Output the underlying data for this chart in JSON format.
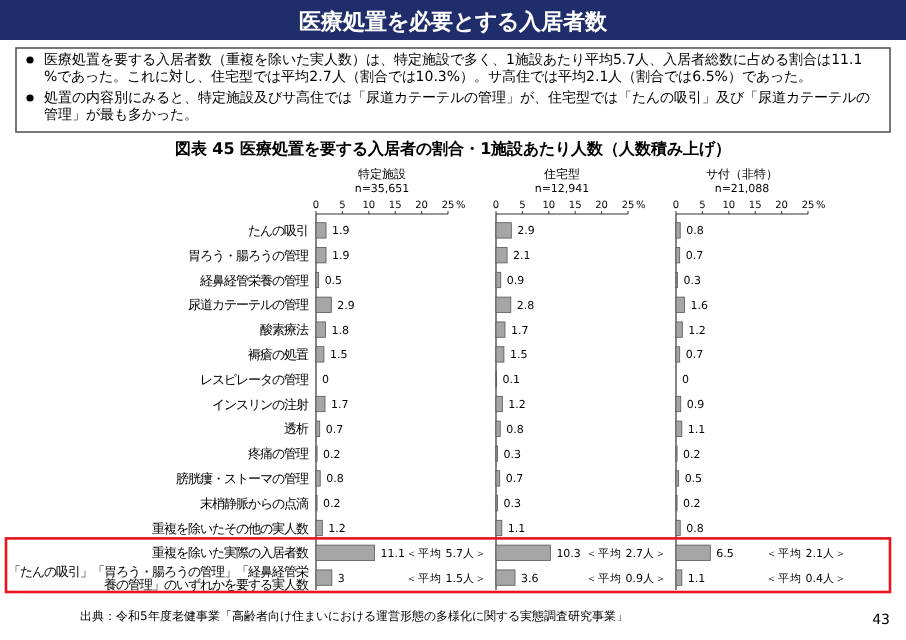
{
  "chart_data": [
    {
      "type": "bar",
      "orientation": "horizontal",
      "title": "特定施設",
      "subtitle": "n=35,651",
      "xlabel": "%",
      "color": "#a6a6a6",
      "xlim": [
        0,
        25
      ],
      "xticks": [
        0,
        5,
        10,
        15,
        20,
        25
      ],
      "data_labels": true,
      "categories": [
        "たんの吸引",
        "胃ろう・腸ろうの管理",
        "経鼻経管栄養の管理",
        "尿道カテーテルの管理",
        "酸素療法",
        "褥瘡の処置",
        "レスピレータの管理",
        "インスリンの注射",
        "透析",
        "疼痛の管理",
        "膀胱瘻・ストーマの管理",
        "末梢静脈からの点滴",
        "重複を除いたその他の実人数",
        "重複を除いた実際の入居者数",
        "「たんの吸引」「胃ろう・腸ろうの管理」「経鼻経管栄養の管理」のいずれかを要する実人数"
      ],
      "values": [
        1.9,
        1.9,
        0.5,
        2.9,
        1.8,
        1.5,
        0.0,
        1.7,
        0.7,
        0.2,
        0.8,
        0.2,
        1.2,
        11.1,
        3.0
      ],
      "annotations": [
        "医療処置を必要とする入居者数",
        "医療処置を要する入居者数（重複を除いた実人数）は、特定施設で多く、1施設あたり平均5.7人、入居者総数に占める割合は11.1%であった。これに対し、住宅型では平均2.7人（割合では10.3%）。サ高住では平均2.1人（割合では6.5%）であった。",
        "処置の内容別にみると、特定施設及びサ高住では「尿道カテーテルの管理」が、住宅型では「たんの吸引」及び「尿道カテーテルの管理」が最も多かった。",
        "図表 45 医療処置を要する入居者の割合・1施設あたり人数（人数積み上げ）",
        "出典：令和5年度老健事業「高齢者向け住まいにおける運営形態の多様化に関する実態調査研究事業」",
        "43",
        "＜平均 5.7人＞",
        "＜平均 1.5人＞"
      ]
    },
    {
      "type": "bar",
      "orientation": "horizontal",
      "title": "住宅型",
      "subtitle": "n=12,941",
      "xlabel": "%",
      "color": "#a6a6a6",
      "xlim": [
        0,
        25
      ],
      "xticks": [
        0,
        5,
        10,
        15,
        20,
        25
      ],
      "data_labels": true,
      "tick_labels": "x",
      "categories": [
        null,
        null,
        null,
        null,
        null,
        null,
        null,
        null,
        null,
        null,
        null,
        null,
        null,
        null,
        null
      ],
      "values": [
        2.9,
        2.1,
        0.9,
        2.8,
        1.7,
        1.5,
        0.1,
        1.2,
        0.8,
        0.3,
        0.7,
        0.3,
        1.1,
        10.3,
        3.6
      ],
      "annotations": [
        "＜平均 2.7人＞",
        "＜平均 0.9人＞"
      ]
    },
    {
      "type": "bar",
      "orientation": "horizontal",
      "title": "サ付（非特）",
      "subtitle": "n=21,088",
      "xlabel": "%",
      "color": "#a6a6a6",
      "xlim": [
        0,
        25
      ],
      "xticks": [
        0,
        5,
        10,
        15,
        20,
        25
      ],
      "data_labels": true,
      "tick_labels": "x",
      "categories": [
        null,
        null,
        null,
        null,
        null,
        null,
        null,
        null,
        null,
        null,
        null,
        null,
        null,
        null,
        null
      ],
      "values": [
        0.8,
        0.7,
        0.3,
        1.6,
        1.2,
        0.7,
        0.0,
        0.9,
        1.1,
        0.2,
        0.5,
        0.2,
        0.8,
        6.5,
        1.1
      ],
      "annotations": [
        "＜平均 2.1人＞",
        "＜平均 0.4人＞"
      ]
    }
  ]
}
